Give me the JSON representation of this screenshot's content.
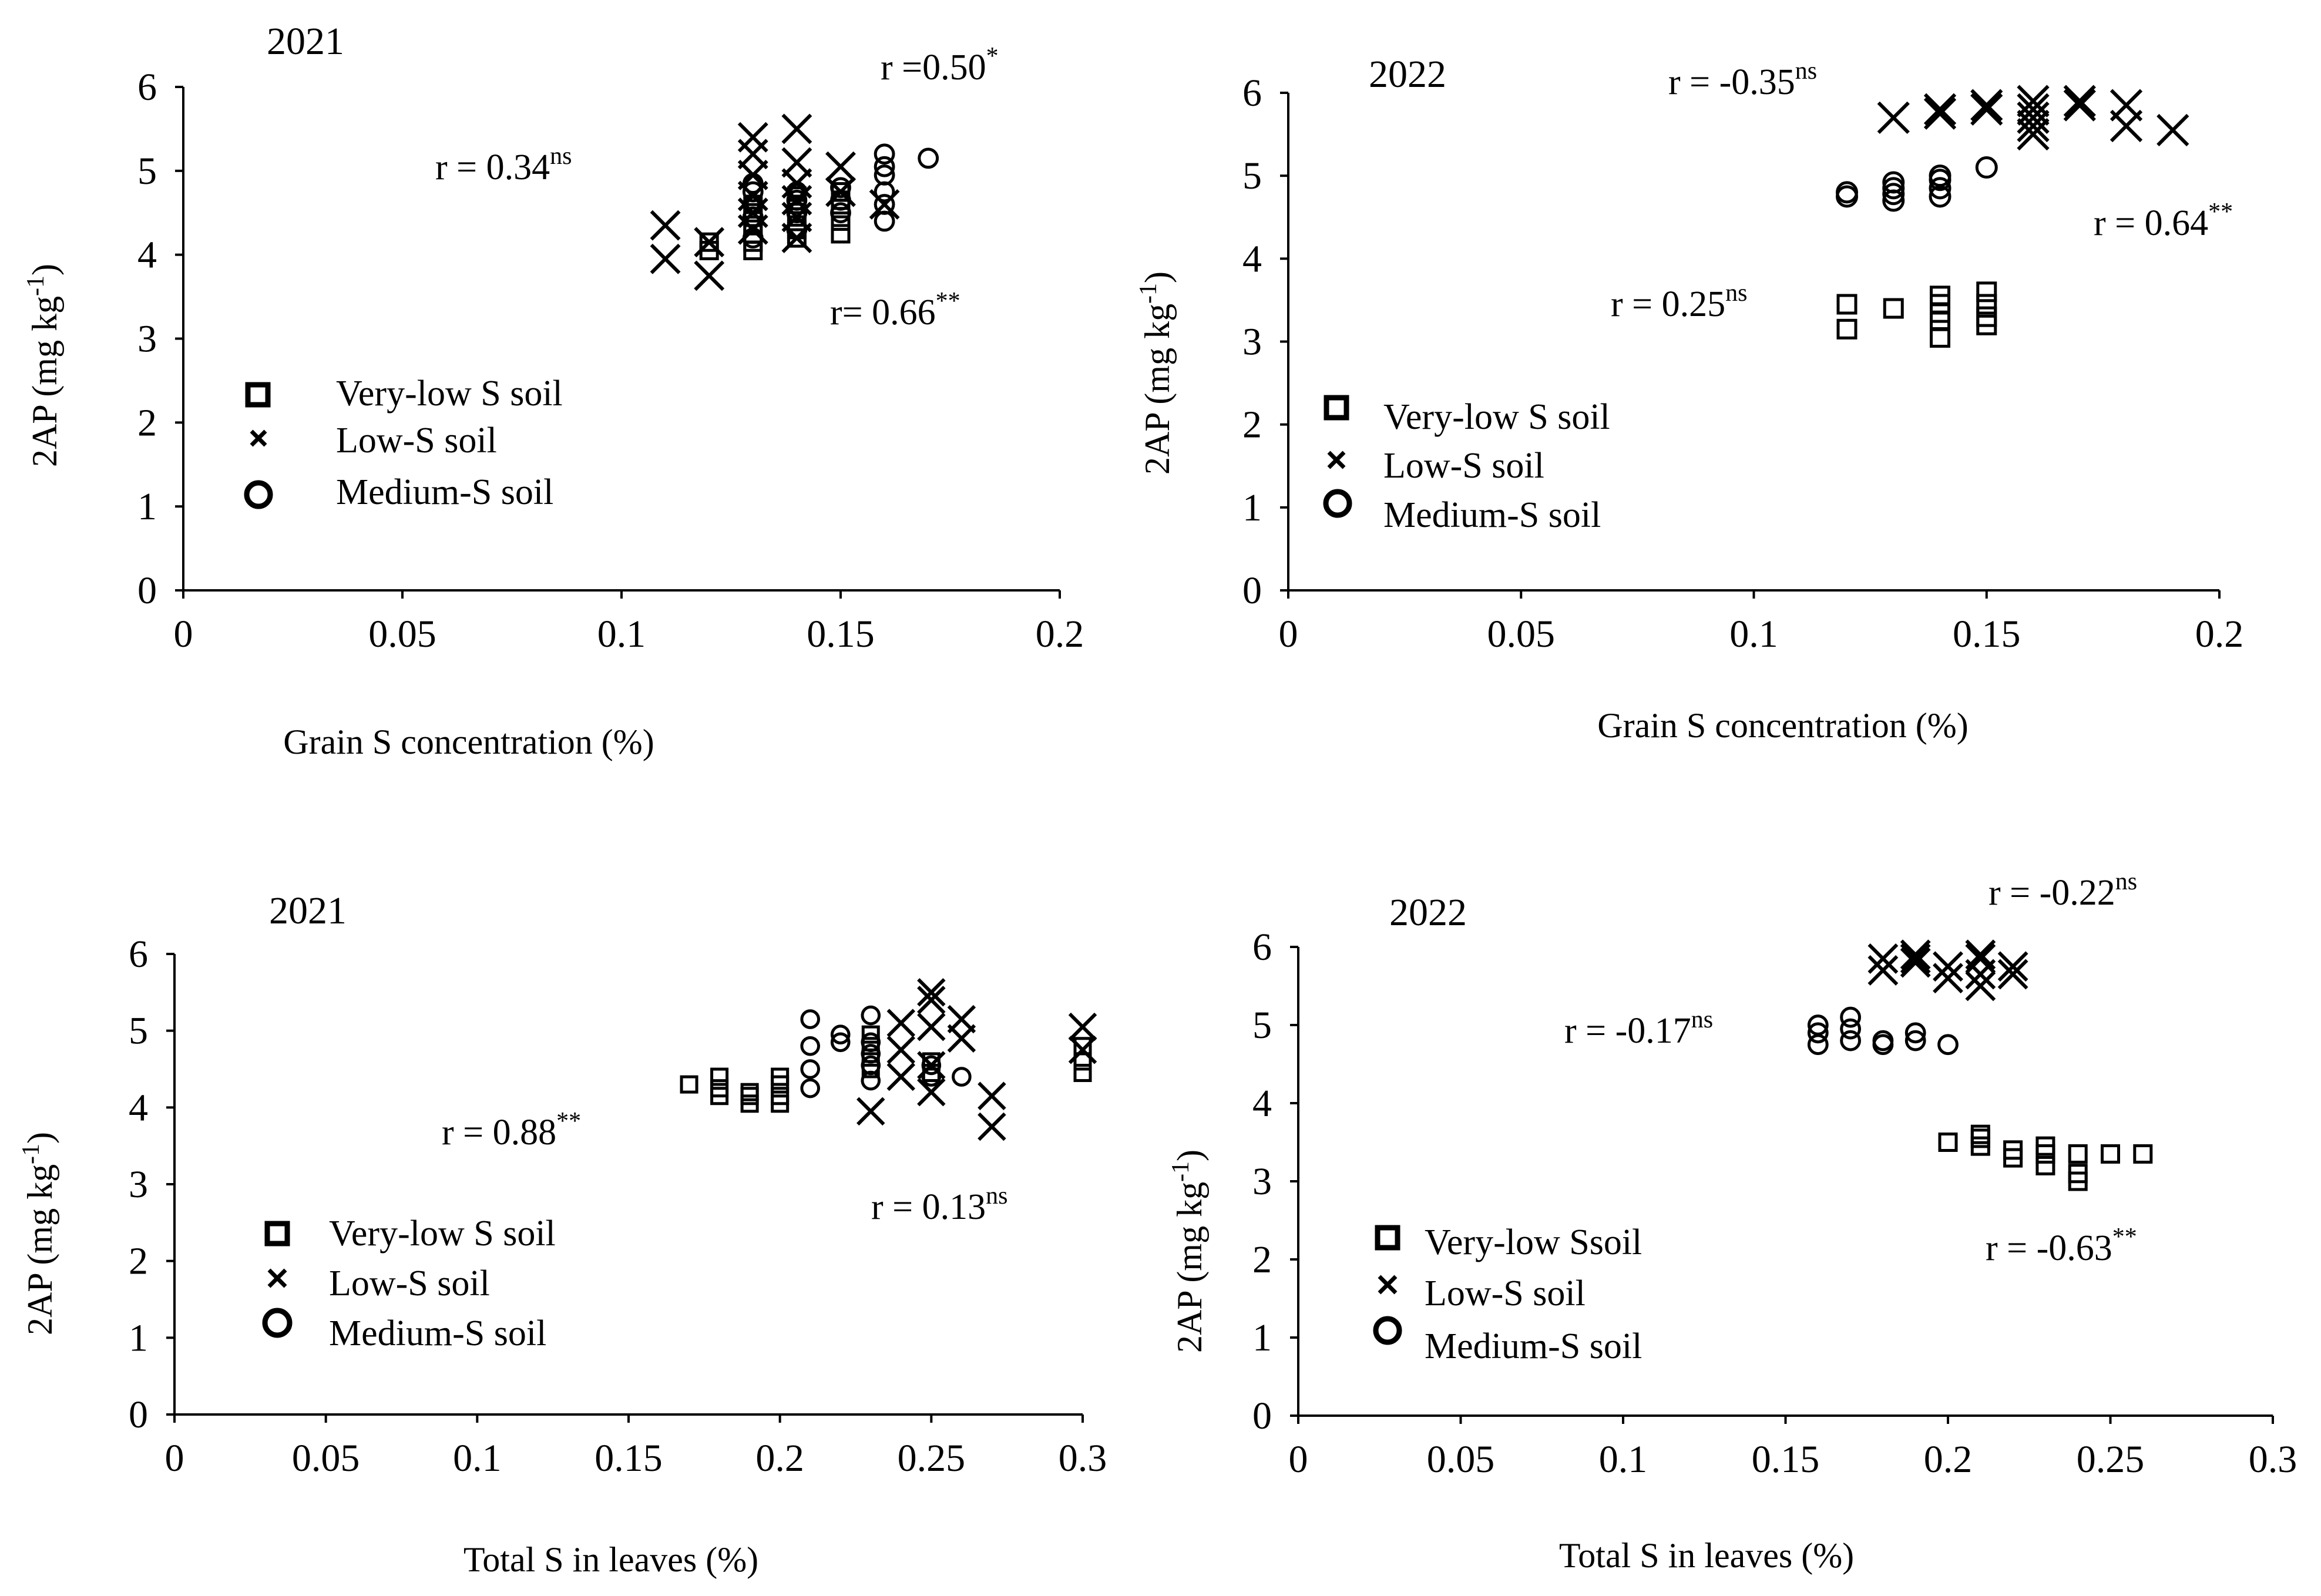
{
  "chart_data": [
    {
      "type": "scatter",
      "title": "2021",
      "xlabel": "Grain S concentration (%)",
      "ylabel": "2AP (mg kg-1)",
      "ylabel_main": "2AP (mg kg",
      "ylabel_sup": "-1",
      "ylabel_close": ")",
      "xlim": [
        0,
        0.2
      ],
      "ylim": [
        0,
        6
      ],
      "xticks": [
        "0",
        "0.05",
        "0.1",
        "0.15",
        "0.2"
      ],
      "yticks": [
        "0",
        "1",
        "2",
        "3",
        "4",
        "5",
        "6"
      ],
      "legend": [
        "Very-low S soil",
        "Low-S soil",
        "Medium-S soil"
      ],
      "annotations": [
        {
          "text": "r =0.50",
          "sup": "*"
        },
        {
          "text": "r = 0.34",
          "sup": "ns"
        },
        {
          "text": "r= 0.66",
          "sup": "**"
        }
      ],
      "series": [
        {
          "name": "Very-low S soil",
          "marker": "square",
          "points": [
            [
              0.12,
              4.15
            ],
            [
              0.12,
              4.05
            ],
            [
              0.13,
              4.05
            ],
            [
              0.13,
              4.15
            ],
            [
              0.13,
              4.25
            ],
            [
              0.13,
              4.35
            ],
            [
              0.13,
              4.5
            ],
            [
              0.13,
              4.6
            ],
            [
              0.14,
              4.2
            ],
            [
              0.14,
              4.3
            ],
            [
              0.14,
              4.45
            ],
            [
              0.14,
              4.55
            ],
            [
              0.14,
              4.6
            ],
            [
              0.14,
              4.7
            ],
            [
              0.15,
              4.25
            ],
            [
              0.15,
              4.4
            ],
            [
              0.15,
              4.55
            ],
            [
              0.15,
              4.65
            ],
            [
              0.15,
              4.75
            ]
          ]
        },
        {
          "name": "Low-S soil",
          "marker": "x",
          "points": [
            [
              0.11,
              4.35
            ],
            [
              0.11,
              3.95
            ],
            [
              0.12,
              4.15
            ],
            [
              0.12,
              3.75
            ],
            [
              0.13,
              4.3
            ],
            [
              0.13,
              4.5
            ],
            [
              0.13,
              4.7
            ],
            [
              0.13,
              4.95
            ],
            [
              0.13,
              5.2
            ],
            [
              0.13,
              5.4
            ],
            [
              0.14,
              4.2
            ],
            [
              0.14,
              4.45
            ],
            [
              0.14,
              4.65
            ],
            [
              0.14,
              4.85
            ],
            [
              0.14,
              5.1
            ],
            [
              0.14,
              5.5
            ],
            [
              0.15,
              4.75
            ],
            [
              0.15,
              5.05
            ],
            [
              0.16,
              4.6
            ]
          ]
        },
        {
          "name": "Medium-S soil",
          "marker": "circle",
          "points": [
            [
              0.13,
              4.2
            ],
            [
              0.13,
              4.45
            ],
            [
              0.13,
              4.6
            ],
            [
              0.13,
              4.75
            ],
            [
              0.13,
              4.85
            ],
            [
              0.14,
              4.3
            ],
            [
              0.14,
              4.5
            ],
            [
              0.14,
              4.65
            ],
            [
              0.14,
              4.75
            ],
            [
              0.15,
              4.5
            ],
            [
              0.15,
              4.65
            ],
            [
              0.15,
              4.8
            ],
            [
              0.16,
              4.4
            ],
            [
              0.16,
              4.6
            ],
            [
              0.16,
              4.75
            ],
            [
              0.16,
              4.95
            ],
            [
              0.16,
              5.05
            ],
            [
              0.16,
              5.2
            ],
            [
              0.17,
              5.15
            ]
          ]
        }
      ]
    },
    {
      "type": "scatter",
      "title": "2022",
      "xlabel": "Grain S concentration (%)",
      "ylabel": "2AP (mg kg-1)",
      "ylabel_main": "2AP (mg kg",
      "ylabel_sup": "-1",
      "ylabel_close": ")",
      "xlim": [
        0,
        0.2
      ],
      "ylim": [
        0,
        6
      ],
      "xticks": [
        "0",
        "0.05",
        "0.1",
        "0.15",
        "0.2"
      ],
      "yticks": [
        "0",
        "1",
        "2",
        "3",
        "4",
        "5",
        "6"
      ],
      "legend": [
        "Very-low S soil",
        "Low-S soil",
        "Medium-S soil"
      ],
      "annotations": [
        {
          "text": "r = -0.35",
          "sup": "ns"
        },
        {
          "text": "r = 0.64",
          "sup": "**"
        },
        {
          "text": "r = 0.25",
          "sup": "ns"
        }
      ],
      "series": [
        {
          "name": "Very-low S soil",
          "marker": "square",
          "points": [
            [
              0.12,
              3.45
            ],
            [
              0.12,
              3.15
            ],
            [
              0.13,
              3.4
            ],
            [
              0.14,
              3.05
            ],
            [
              0.14,
              3.25
            ],
            [
              0.14,
              3.35
            ],
            [
              0.14,
              3.45
            ],
            [
              0.14,
              3.55
            ],
            [
              0.15,
              3.2
            ],
            [
              0.15,
              3.3
            ],
            [
              0.15,
              3.45
            ],
            [
              0.15,
              3.6
            ]
          ]
        },
        {
          "name": "Low-S soil",
          "marker": "x",
          "points": [
            [
              0.13,
              5.7
            ],
            [
              0.14,
              5.75
            ],
            [
              0.14,
              5.8
            ],
            [
              0.15,
              5.8
            ],
            [
              0.15,
              5.85
            ],
            [
              0.16,
              5.5
            ],
            [
              0.16,
              5.6
            ],
            [
              0.16,
              5.7
            ],
            [
              0.16,
              5.8
            ],
            [
              0.16,
              5.9
            ],
            [
              0.17,
              5.85
            ],
            [
              0.17,
              5.9
            ],
            [
              0.18,
              5.6
            ],
            [
              0.18,
              5.85
            ],
            [
              0.19,
              5.55
            ]
          ]
        },
        {
          "name": "Medium-S soil",
          "marker": "circle",
          "points": [
            [
              0.12,
              4.75
            ],
            [
              0.12,
              4.8
            ],
            [
              0.13,
              4.7
            ],
            [
              0.13,
              4.78
            ],
            [
              0.13,
              4.85
            ],
            [
              0.13,
              4.92
            ],
            [
              0.14,
              4.75
            ],
            [
              0.14,
              4.85
            ],
            [
              0.14,
              4.95
            ],
            [
              0.14,
              5.0
            ],
            [
              0.15,
              5.1
            ]
          ]
        }
      ]
    },
    {
      "type": "scatter",
      "title": "2021",
      "xlabel": "Total S in leaves  (%)",
      "ylabel": "2AP (mg kg-1)",
      "ylabel_main": "2AP (mg kg",
      "ylabel_sup": "-1",
      "ylabel_close": ")",
      "xlim": [
        0,
        0.3
      ],
      "ylim": [
        0,
        6
      ],
      "xticks": [
        "0",
        "0.05",
        "0.1",
        "0.15",
        "0.2",
        "0.25",
        "0.3"
      ],
      "yticks": [
        "0",
        "1",
        "2",
        "3",
        "4",
        "5",
        "6"
      ],
      "legend": [
        "Very-low S soil",
        "Low-S soil",
        "Medium-S soil"
      ],
      "annotations": [
        {
          "text": "r = 0.88",
          "sup": "**"
        },
        {
          "text": "r = 0.13",
          "sup": "ns"
        }
      ],
      "series": [
        {
          "name": "Very-low S soil",
          "marker": "square",
          "points": [
            [
              0.17,
              4.3
            ],
            [
              0.18,
              4.15
            ],
            [
              0.18,
              4.25
            ],
            [
              0.18,
              4.4
            ],
            [
              0.19,
              4.05
            ],
            [
              0.19,
              4.15
            ],
            [
              0.19,
              4.2
            ],
            [
              0.2,
              4.05
            ],
            [
              0.2,
              4.15
            ],
            [
              0.2,
              4.3
            ],
            [
              0.2,
              4.4
            ],
            [
              0.23,
              4.5
            ],
            [
              0.23,
              4.65
            ],
            [
              0.23,
              4.8
            ],
            [
              0.23,
              4.95
            ],
            [
              0.25,
              4.45
            ],
            [
              0.25,
              4.6
            ],
            [
              0.3,
              4.45
            ],
            [
              0.3,
              4.6
            ],
            [
              0.3,
              4.8
            ]
          ]
        },
        {
          "name": "Low-S soil",
          "marker": "x",
          "points": [
            [
              0.23,
              3.95
            ],
            [
              0.24,
              4.4
            ],
            [
              0.24,
              4.75
            ],
            [
              0.24,
              5.1
            ],
            [
              0.25,
              4.2
            ],
            [
              0.25,
              4.55
            ],
            [
              0.25,
              5.05
            ],
            [
              0.25,
              5.4
            ],
            [
              0.25,
              5.5
            ],
            [
              0.26,
              4.9
            ],
            [
              0.26,
              5.15
            ],
            [
              0.27,
              3.75
            ],
            [
              0.27,
              4.15
            ],
            [
              0.3,
              4.75
            ],
            [
              0.3,
              5.05
            ]
          ]
        },
        {
          "name": "Medium-S soil",
          "marker": "circle",
          "points": [
            [
              0.21,
              4.25
            ],
            [
              0.21,
              4.5
            ],
            [
              0.21,
              4.8
            ],
            [
              0.21,
              5.15
            ],
            [
              0.22,
              4.85
            ],
            [
              0.22,
              4.95
            ],
            [
              0.23,
              4.35
            ],
            [
              0.23,
              4.55
            ],
            [
              0.23,
              4.7
            ],
            [
              0.23,
              4.85
            ],
            [
              0.23,
              5.2
            ],
            [
              0.25,
              4.4
            ],
            [
              0.25,
              4.55
            ],
            [
              0.26,
              4.4
            ]
          ]
        }
      ]
    },
    {
      "type": "scatter",
      "title": "2022",
      "xlabel": "Total S in leaves (%)",
      "ylabel": "2AP (mg kg-1)",
      "ylabel_main": "2AP (mg kg",
      "ylabel_sup": "-1",
      "ylabel_close": ")",
      "xlim": [
        0,
        0.3
      ],
      "ylim": [
        0,
        6
      ],
      "xticks": [
        "0",
        "0.05",
        "0.1",
        "0.15",
        "0.2",
        "0.25",
        "0.3"
      ],
      "yticks": [
        "0",
        "1",
        "2",
        "3",
        "4",
        "5",
        "6"
      ],
      "legend": [
        "Very-low Ssoil",
        "Low-S soil",
        "Medium-S soil"
      ],
      "annotations": [
        {
          "text": "r = -0.22",
          "sup": "ns"
        },
        {
          "text": "r = -0.17",
          "sup": "ns"
        },
        {
          "text": "r = -0.63",
          "sup": "**"
        }
      ],
      "series": [
        {
          "name": "Very-low Ssoil",
          "marker": "square",
          "points": [
            [
              0.2,
              3.5
            ],
            [
              0.21,
              3.45
            ],
            [
              0.21,
              3.55
            ],
            [
              0.21,
              3.6
            ],
            [
              0.22,
              3.3
            ],
            [
              0.22,
              3.4
            ],
            [
              0.23,
              3.2
            ],
            [
              0.23,
              3.35
            ],
            [
              0.23,
              3.45
            ],
            [
              0.24,
              3.0
            ],
            [
              0.24,
              3.1
            ],
            [
              0.24,
              3.35
            ],
            [
              0.25,
              3.35
            ],
            [
              0.26,
              3.35
            ]
          ]
        },
        {
          "name": "Low-S soil",
          "marker": "x",
          "points": [
            [
              0.18,
              5.7
            ],
            [
              0.18,
              5.85
            ],
            [
              0.19,
              5.8
            ],
            [
              0.19,
              5.85
            ],
            [
              0.19,
              5.9
            ],
            [
              0.2,
              5.6
            ],
            [
              0.2,
              5.75
            ],
            [
              0.21,
              5.5
            ],
            [
              0.21,
              5.65
            ],
            [
              0.21,
              5.85
            ],
            [
              0.21,
              5.9
            ],
            [
              0.22,
              5.65
            ],
            [
              0.22,
              5.75
            ]
          ]
        },
        {
          "name": "Medium-S soil",
          "marker": "circle",
          "points": [
            [
              0.16,
              4.75
            ],
            [
              0.16,
              4.9
            ],
            [
              0.16,
              5.0
            ],
            [
              0.17,
              4.8
            ],
            [
              0.17,
              4.95
            ],
            [
              0.17,
              5.1
            ],
            [
              0.18,
              4.75
            ],
            [
              0.18,
              4.8
            ],
            [
              0.19,
              4.8
            ],
            [
              0.19,
              4.9
            ],
            [
              0.2,
              4.75
            ]
          ]
        }
      ]
    }
  ]
}
